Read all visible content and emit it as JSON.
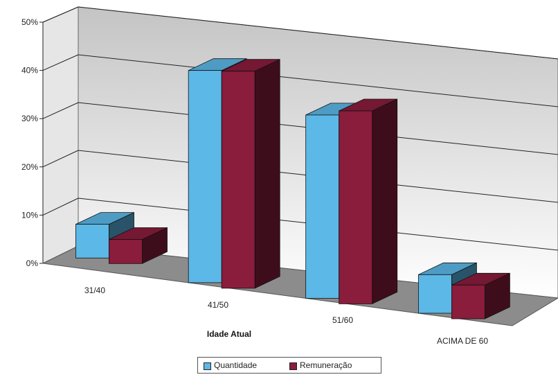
{
  "chart_data": {
    "type": "bar",
    "title": "",
    "xlabel": "Idade Atual",
    "ylabel": "",
    "ylim": [
      0,
      50
    ],
    "yticks": [
      "0%",
      "10%",
      "20%",
      "30%",
      "40%",
      "50%"
    ],
    "grid": true,
    "legend_position": "bottom",
    "categories": [
      "31/40",
      "41/50",
      "51/60",
      "ACIMA DE 60"
    ],
    "series": [
      {
        "name": "Quantidade",
        "values": [
          7,
          44,
          38,
          8
        ],
        "color": "#5cb8e6"
      },
      {
        "name": "Remuneração",
        "values": [
          5,
          45,
          40,
          7
        ],
        "color": "#8a1c3c"
      }
    ]
  }
}
